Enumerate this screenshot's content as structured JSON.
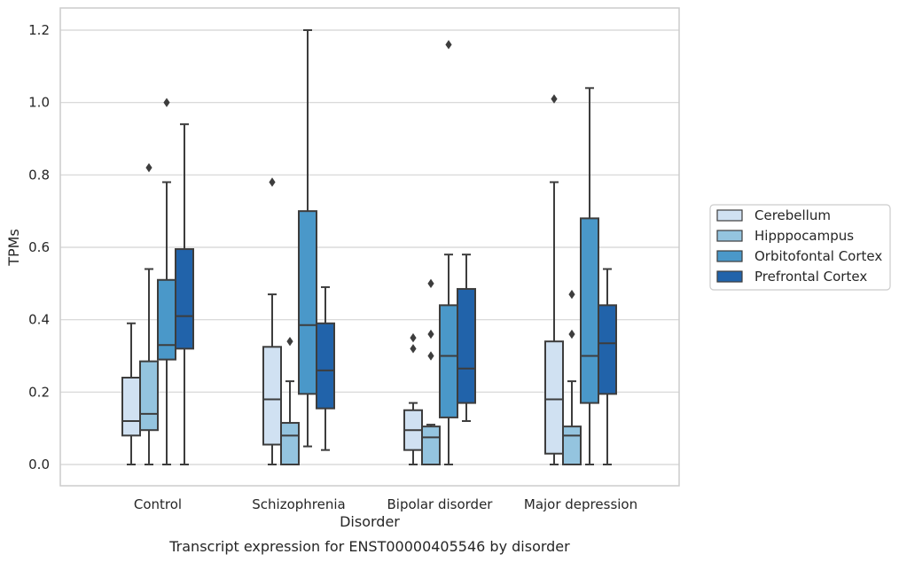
{
  "chart_data": {
    "type": "box",
    "xlabel": "Disorder",
    "ylabel": "TPMs",
    "caption": "Transcript expression for ENST00000405546 by disorder",
    "ylim": [
      -0.06,
      1.26
    ],
    "yticks": [
      "0.0",
      "0.2",
      "0.4",
      "0.6",
      "0.8",
      "1.0",
      "1.2"
    ],
    "grid": "horizontal",
    "legend_position": "right",
    "categories": [
      "Control",
      "Schizophrenia",
      "Bipolar disorder",
      "Major depression"
    ],
    "series": [
      {
        "name": "Cerebellum",
        "color": "#d0e1f2",
        "boxes": [
          {
            "whislo": 0.0,
            "q1": 0.08,
            "med": 0.12,
            "q3": 0.24,
            "whishi": 0.39,
            "fliers": []
          },
          {
            "whislo": 0.0,
            "q1": 0.055,
            "med": 0.18,
            "q3": 0.325,
            "whishi": 0.47,
            "fliers": [
              0.78
            ]
          },
          {
            "whislo": 0.0,
            "q1": 0.04,
            "med": 0.095,
            "q3": 0.15,
            "whishi": 0.17,
            "fliers": [
              0.32,
              0.35
            ]
          },
          {
            "whislo": 0.0,
            "q1": 0.03,
            "med": 0.18,
            "q3": 0.34,
            "whishi": 0.78,
            "fliers": [
              1.01
            ]
          }
        ]
      },
      {
        "name": "Hipppocampus",
        "color": "#94c4df",
        "boxes": [
          {
            "whislo": 0.0,
            "q1": 0.095,
            "med": 0.14,
            "q3": 0.285,
            "whishi": 0.54,
            "fliers": [
              0.82
            ]
          },
          {
            "whislo": 0.0,
            "q1": 0.0,
            "med": 0.08,
            "q3": 0.115,
            "whishi": 0.23,
            "fliers": [
              0.34
            ]
          },
          {
            "whislo": 0.0,
            "q1": 0.0,
            "med": 0.075,
            "q3": 0.105,
            "whishi": 0.11,
            "fliers": [
              0.3,
              0.36,
              0.5
            ]
          },
          {
            "whislo": 0.0,
            "q1": 0.0,
            "med": 0.08,
            "q3": 0.105,
            "whishi": 0.23,
            "fliers": [
              0.36,
              0.47
            ]
          }
        ]
      },
      {
        "name": "Orbitofontal Cortex",
        "color": "#4a98c9",
        "boxes": [
          {
            "whislo": 0.0,
            "q1": 0.29,
            "med": 0.33,
            "q3": 0.51,
            "whishi": 0.78,
            "fliers": [
              1.0
            ]
          },
          {
            "whislo": 0.05,
            "q1": 0.195,
            "med": 0.385,
            "q3": 0.7,
            "whishi": 1.2,
            "fliers": []
          },
          {
            "whislo": 0.0,
            "q1": 0.13,
            "med": 0.3,
            "q3": 0.44,
            "whishi": 0.58,
            "fliers": [
              1.16
            ]
          },
          {
            "whislo": 0.0,
            "q1": 0.17,
            "med": 0.3,
            "q3": 0.68,
            "whishi": 1.04,
            "fliers": []
          }
        ]
      },
      {
        "name": "Prefrontal Cortex",
        "color": "#2163aa",
        "boxes": [
          {
            "whislo": 0.0,
            "q1": 0.32,
            "med": 0.41,
            "q3": 0.595,
            "whishi": 0.94,
            "fliers": []
          },
          {
            "whislo": 0.04,
            "q1": 0.155,
            "med": 0.26,
            "q3": 0.39,
            "whishi": 0.49,
            "fliers": []
          },
          {
            "whislo": 0.12,
            "q1": 0.17,
            "med": 0.265,
            "q3": 0.485,
            "whishi": 0.58,
            "fliers": []
          },
          {
            "whislo": 0.0,
            "q1": 0.195,
            "med": 0.335,
            "q3": 0.44,
            "whishi": 0.54,
            "fliers": []
          }
        ]
      }
    ]
  }
}
